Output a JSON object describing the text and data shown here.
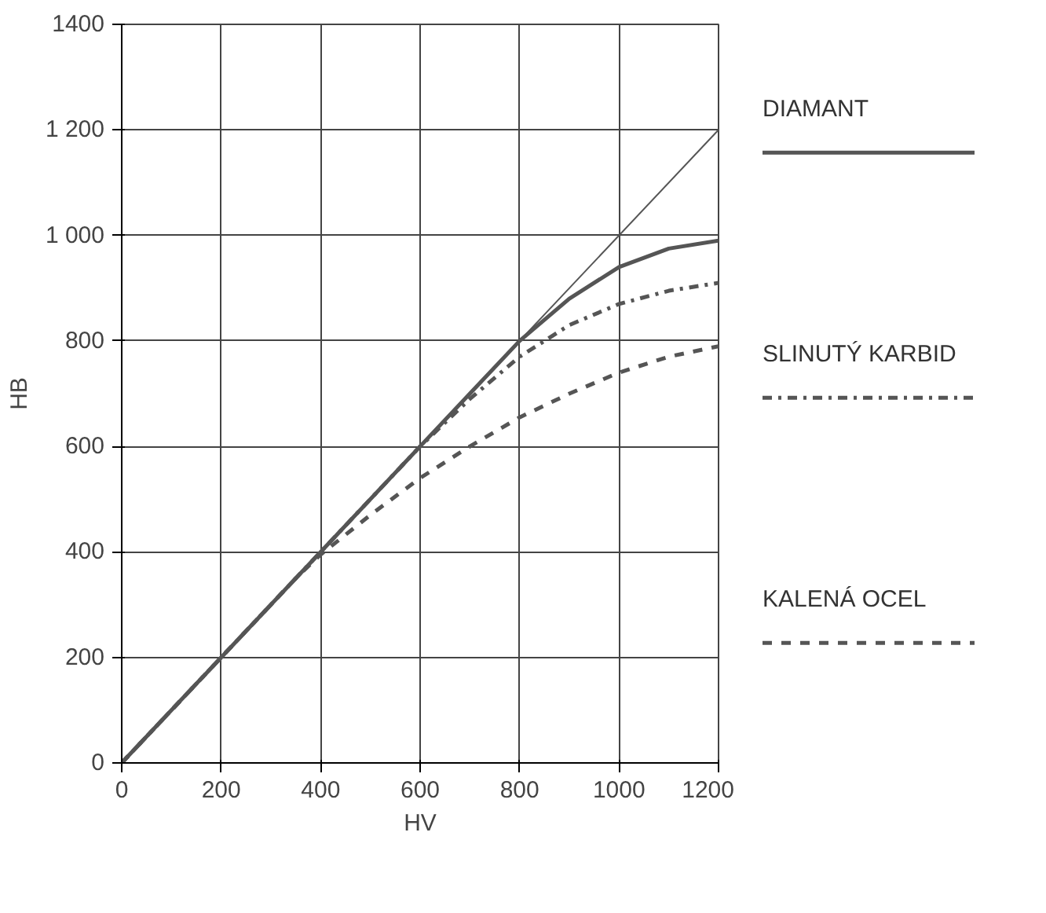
{
  "chart_data": {
    "type": "line",
    "xlabel": "HV",
    "ylabel": "HB",
    "xlim": [
      0,
      1200
    ],
    "ylim": [
      0,
      1400
    ],
    "xticks": [
      0,
      200,
      400,
      600,
      800,
      1000,
      1200
    ],
    "yticks": [
      0,
      200,
      400,
      600,
      800,
      {
        "value": 1000,
        "label": "1 000"
      },
      {
        "value": 1200,
        "label": "1 200"
      },
      1400
    ],
    "grid": true,
    "legend": "right",
    "marker": "none",
    "series": [
      {
        "color": "#555555",
        "x": [
          0,
          1200
        ],
        "values": [
          0,
          1200
        ],
        "line_style": "solid"
      },
      {
        "name": "DIAMANT",
        "color": "#555555",
        "line_style": "solid",
        "x": [
          0,
          200,
          400,
          600,
          700,
          800,
          900,
          1000,
          1100,
          1200
        ],
        "values": [
          0,
          200,
          400,
          600,
          700,
          800,
          880,
          940,
          975,
          990
        ]
      },
      {
        "name": "SLINUTÝ KARBID",
        "color": "#555555",
        "line_style": "dashdot",
        "x": [
          0,
          200,
          400,
          600,
          700,
          800,
          900,
          1000,
          1100,
          1200
        ],
        "values": [
          0,
          200,
          400,
          600,
          690,
          770,
          830,
          870,
          895,
          910
        ]
      },
      {
        "name": "KALENÁ OCEL",
        "color": "#555555",
        "line_style": "dashed",
        "x": [
          0,
          200,
          350,
          400,
          500,
          600,
          700,
          800,
          900,
          1000,
          1100,
          1200
        ],
        "values": [
          0,
          200,
          350,
          395,
          470,
          540,
          600,
          655,
          700,
          740,
          770,
          790
        ]
      }
    ]
  }
}
